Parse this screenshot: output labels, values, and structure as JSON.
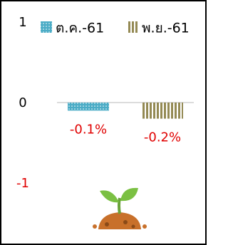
{
  "chart_data": {
    "type": "bar",
    "series": [
      {
        "name": "ต.ค.-61",
        "color": "#4bacc6",
        "values": [
          -0.1
        ],
        "value_labels": [
          "-0.1%"
        ]
      },
      {
        "name": "พ.ย.-61",
        "color": "#948a54",
        "values": [
          -0.2
        ],
        "value_labels": [
          "-0.2%"
        ]
      }
    ],
    "ylim": [
      -1,
      1
    ],
    "yticks": [
      -1,
      0,
      1
    ],
    "ytick_colors": [
      "#e00000",
      "#000000",
      "#000000"
    ],
    "value_label_color": "#e00000"
  }
}
